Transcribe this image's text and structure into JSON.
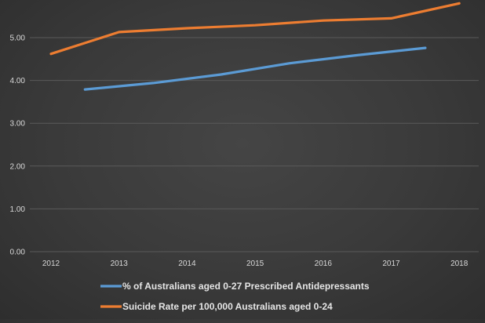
{
  "chart_data": {
    "type": "line",
    "x_tick_labels": [
      "2012",
      "2013",
      "2014",
      "2015",
      "2016",
      "2017",
      "2018"
    ],
    "y_tick_labels": [
      "0.00",
      "1.00",
      "2.00",
      "3.00",
      "4.00",
      "5.00"
    ],
    "ylim": [
      0,
      6
    ],
    "grid": true,
    "legend_position": "bottom",
    "series": [
      {
        "name": "% of Australians aged 0-27 Prescribed Antidepressants",
        "color": "#5b9bd5",
        "x": [
          2012.5,
          2013.5,
          2014.5,
          2015.5,
          2016.5,
          2017.5
        ],
        "y": [
          3.79,
          3.94,
          4.14,
          4.4,
          4.59,
          4.76
        ]
      },
      {
        "name": "Suicide Rate per 100,000 Australians aged 0-24",
        "color": "#ed7d31",
        "x": [
          2012,
          2013,
          2014,
          2015,
          2016,
          2017,
          2018
        ],
        "y": [
          4.62,
          5.13,
          5.22,
          5.29,
          5.4,
          5.45,
          5.8
        ]
      }
    ]
  }
}
